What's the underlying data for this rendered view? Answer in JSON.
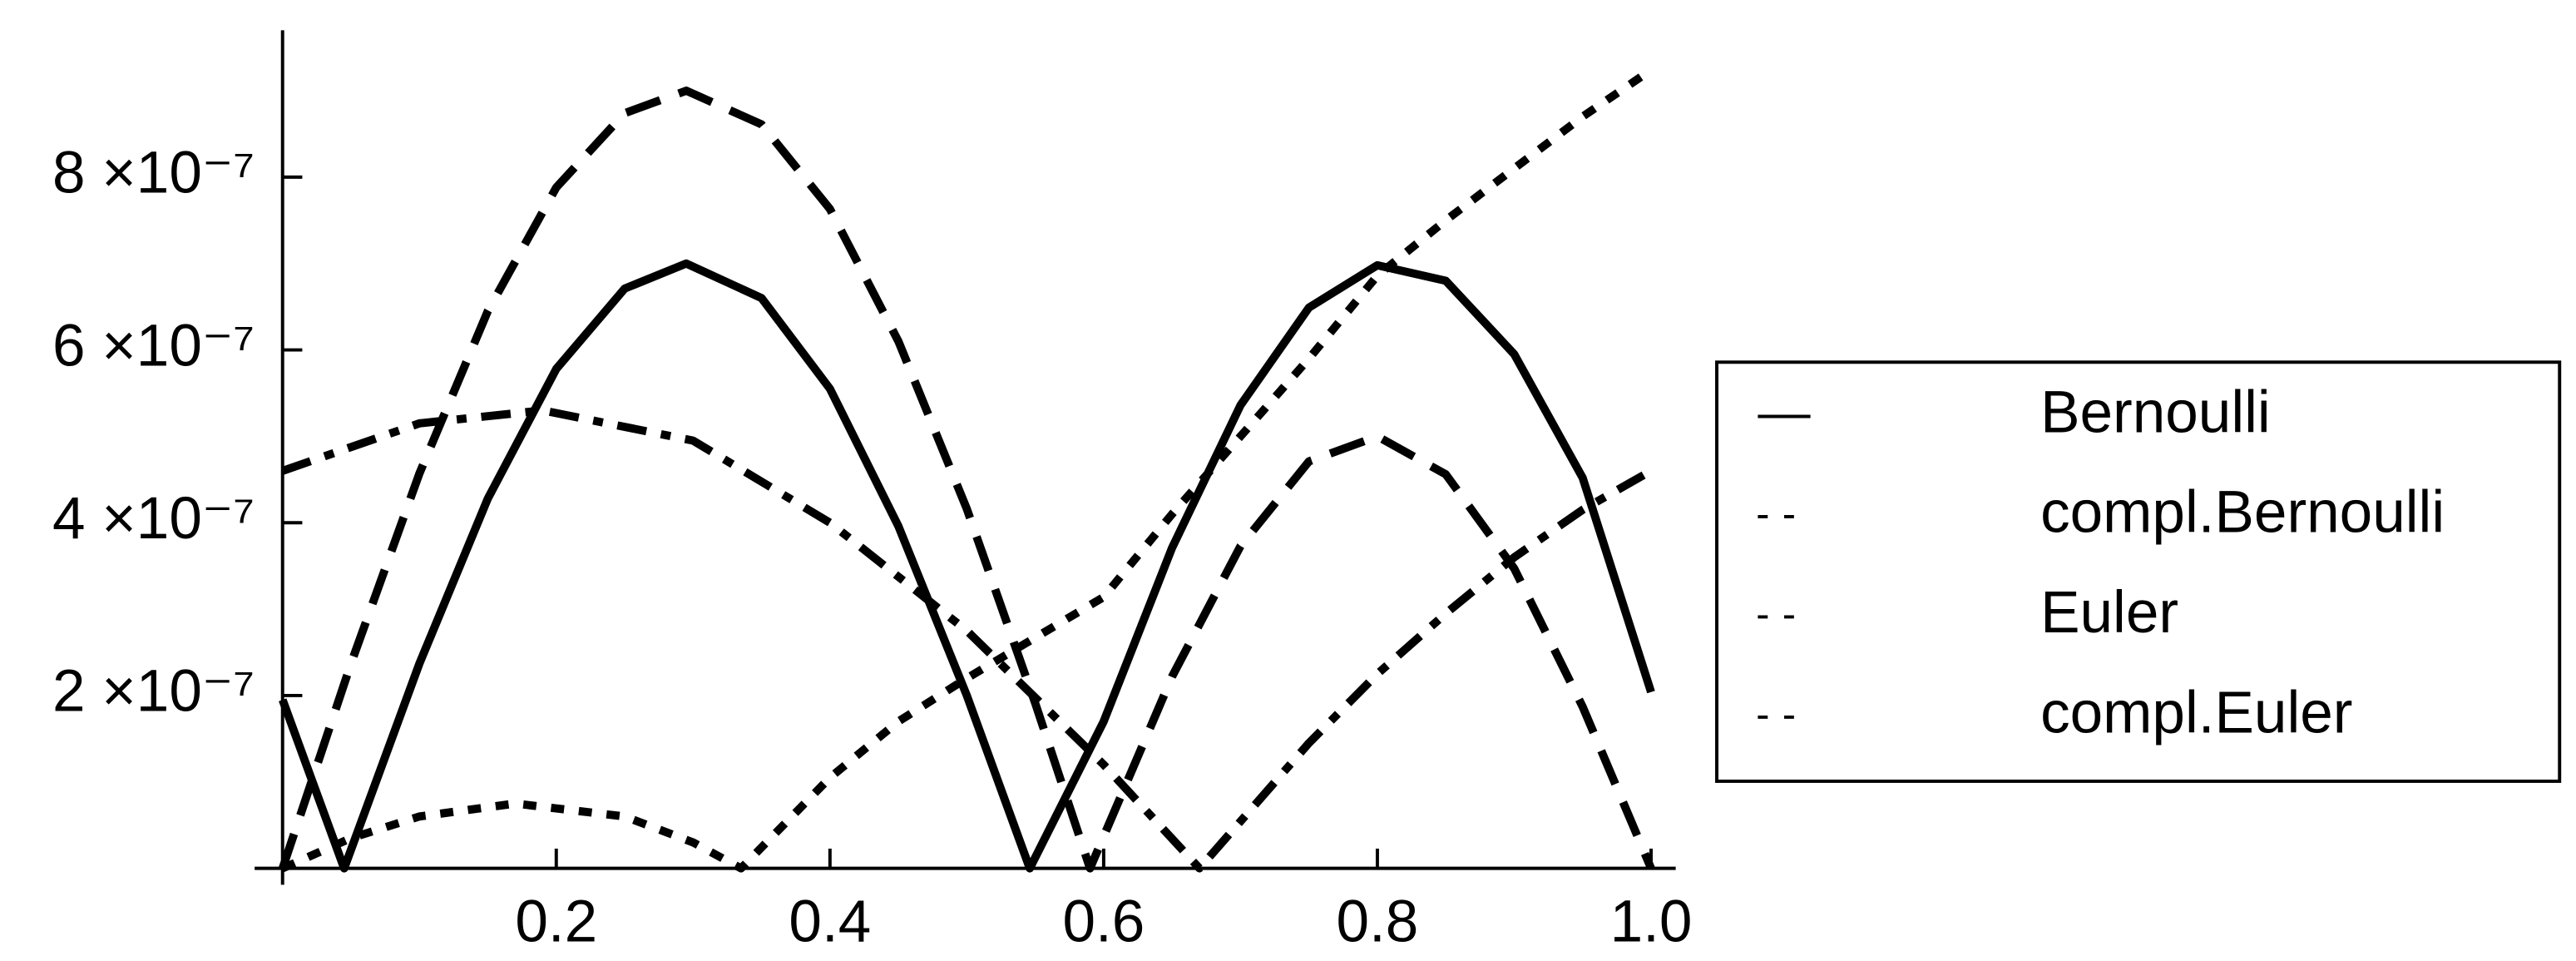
{
  "chart_data": {
    "type": "line",
    "xlim": [
      0,
      1
    ],
    "ylim": [
      0,
      9.7e-07
    ],
    "xticks": [
      0.2,
      0.4,
      0.6,
      0.8,
      {
        "value": 1,
        "label": "1.0"
      }
    ],
    "yticks": [
      {
        "value": 2e-07,
        "label": "2 ×10⁻⁷"
      },
      {
        "value": 4e-07,
        "label": "4 ×10⁻⁷"
      },
      {
        "value": 6e-07,
        "label": "6 ×10⁻⁷"
      },
      {
        "value": 8e-07,
        "label": "8 ×10⁻⁷"
      }
    ],
    "legend": "right",
    "series": [
      {
        "name": "Bernoulli",
        "color": "#000000",
        "dash": "none",
        "x": [
          0,
          0.045,
          0.1,
          0.15,
          0.2,
          0.25,
          0.295,
          0.35,
          0.4,
          0.45,
          0.5,
          0.546,
          0.6,
          0.65,
          0.7,
          0.75,
          0.8,
          0.85,
          0.9,
          0.95,
          1
        ],
        "values": [
          1.95e-07,
          0,
          2.37e-07,
          4.28e-07,
          5.78e-07,
          6.71e-07,
          7e-07,
          6.6e-07,
          5.55e-07,
          3.96e-07,
          2e-07,
          0,
          1.7e-07,
          3.71e-07,
          5.36e-07,
          6.49e-07,
          6.98e-07,
          6.8e-07,
          5.95e-07,
          4.52e-07,
          2.04e-07
        ]
      },
      {
        "name": "compl.Bernoulli",
        "color": "#000000",
        "dash": "22,12",
        "x": [
          0,
          0.05,
          0.1,
          0.15,
          0.2,
          0.25,
          0.295,
          0.35,
          0.4,
          0.45,
          0.5,
          0.55,
          0.59,
          0.65,
          0.7,
          0.75,
          0.8,
          0.85,
          0.9,
          0.95,
          1
        ],
        "values": [
          0,
          2.37e-07,
          4.57e-07,
          6.45e-07,
          7.88e-07,
          8.74e-07,
          9e-07,
          8.61e-07,
          7.63e-07,
          6.1e-07,
          4.16e-07,
          1.91e-07,
          0,
          2.22e-07,
          3.73e-07,
          4.71e-07,
          5e-07,
          4.56e-07,
          3.47e-07,
          1.87e-07,
          0
        ]
      },
      {
        "name": "Euler",
        "color": "#000000",
        "dash": "8,9",
        "x": [
          0,
          0.05,
          0.1,
          0.17,
          0.25,
          0.3,
          0.335,
          0.4,
          0.45,
          0.5,
          0.55,
          0.6,
          0.65,
          0.7,
          0.75,
          0.8,
          0.85,
          0.9,
          0.95,
          1
        ],
        "values": [
          0,
          3.5e-08,
          6e-08,
          7.5e-08,
          6e-08,
          3e-08,
          0,
          1.05e-07,
          1.7e-07,
          2.2e-07,
          2.67e-07,
          3.14e-07,
          4.1e-07,
          5e-07,
          5.9e-07,
          6.86e-07,
          7.5e-07,
          8.1e-07,
          8.7e-07,
          9.24e-07
        ]
      },
      {
        "name": "compl.Euler",
        "color": "#000000",
        "dash": "18,9,6,9",
        "x": [
          0,
          0.1,
          0.19,
          0.3,
          0.4,
          0.5,
          0.6,
          0.67,
          0.75,
          0.8,
          0.85,
          0.9,
          0.95,
          1
        ],
        "values": [
          4.6e-07,
          5.15e-07,
          5.3e-07,
          4.95e-07,
          4e-07,
          2.75e-07,
          1.2e-07,
          0,
          1.45e-07,
          2.25e-07,
          2.95e-07,
          3.6e-07,
          4.15e-07,
          4.6e-07
        ]
      }
    ]
  }
}
